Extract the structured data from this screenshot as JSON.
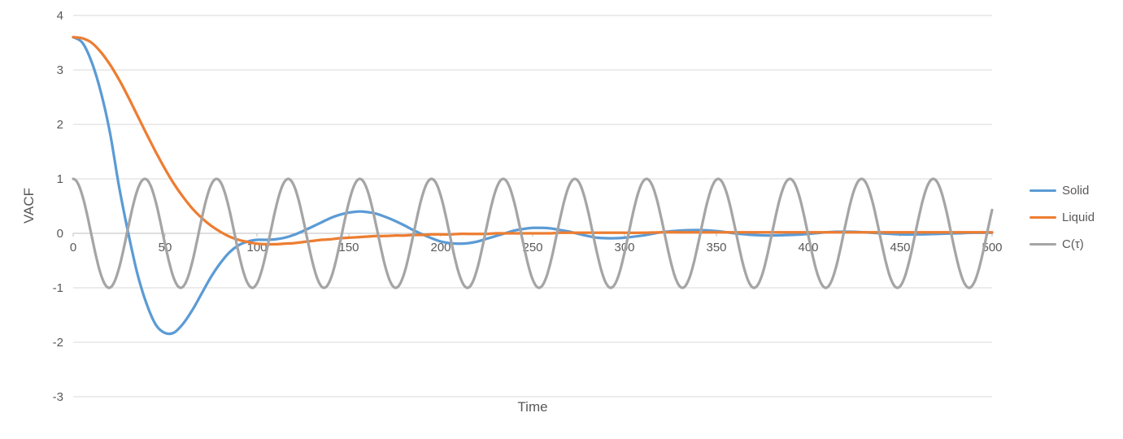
{
  "chart_data": {
    "type": "line",
    "title": "",
    "xlabel": "Time",
    "ylabel": "VACF",
    "xlim": [
      0,
      500
    ],
    "ylim": [
      -3,
      4
    ],
    "x_ticks": [
      0,
      50,
      100,
      150,
      200,
      250,
      300,
      350,
      400,
      450,
      500
    ],
    "y_ticks": [
      4,
      3,
      2,
      1,
      0,
      -1,
      -2,
      -3
    ],
    "grid": true,
    "legend_position": "right",
    "colors": {
      "grid": "#d9d9d9",
      "axis": "#bfbfbf",
      "tick_text": "#595959"
    },
    "x": [
      0,
      5,
      10,
      15,
      20,
      25,
      30,
      35,
      40,
      45,
      50,
      55,
      60,
      65,
      70,
      75,
      80,
      85,
      90,
      95,
      100,
      105,
      110,
      115,
      120,
      125,
      130,
      135,
      140,
      145,
      150,
      155,
      160,
      165,
      170,
      175,
      180,
      185,
      190,
      195,
      200,
      205,
      210,
      215,
      220,
      225,
      230,
      235,
      240,
      245,
      250,
      255,
      260,
      265,
      270,
      275,
      280,
      285,
      290,
      295,
      300,
      310,
      320,
      330,
      340,
      350,
      360,
      370,
      380,
      390,
      400,
      410,
      420,
      430,
      440,
      450,
      460,
      470,
      480,
      490,
      500
    ],
    "series": [
      {
        "name": "Solid",
        "color": "#5b9bd5",
        "y": [
          3.6,
          3.5,
          3.15,
          2.6,
          1.85,
          0.85,
          0.0,
          -0.75,
          -1.3,
          -1.68,
          -1.83,
          -1.82,
          -1.65,
          -1.4,
          -1.1,
          -0.8,
          -0.55,
          -0.35,
          -0.22,
          -0.15,
          -0.12,
          -0.12,
          -0.11,
          -0.08,
          -0.03,
          0.04,
          0.12,
          0.2,
          0.28,
          0.34,
          0.38,
          0.4,
          0.39,
          0.36,
          0.3,
          0.23,
          0.15,
          0.06,
          -0.02,
          -0.09,
          -0.15,
          -0.18,
          -0.19,
          -0.18,
          -0.15,
          -0.1,
          -0.05,
          0.0,
          0.05,
          0.08,
          0.1,
          0.1,
          0.09,
          0.06,
          0.03,
          -0.01,
          -0.05,
          -0.08,
          -0.09,
          -0.09,
          -0.08,
          -0.04,
          0.02,
          0.05,
          0.06,
          0.04,
          0.0,
          -0.03,
          -0.04,
          -0.03,
          -0.01,
          0.02,
          0.03,
          0.02,
          0.0,
          -0.02,
          -0.02,
          -0.01,
          0.0,
          0.01,
          0.01
        ]
      },
      {
        "name": "Liquid",
        "color": "#ed7d31",
        "y": [
          3.6,
          3.58,
          3.5,
          3.33,
          3.1,
          2.82,
          2.5,
          2.16,
          1.82,
          1.49,
          1.18,
          0.9,
          0.66,
          0.45,
          0.28,
          0.14,
          0.03,
          -0.06,
          -0.12,
          -0.16,
          -0.19,
          -0.2,
          -0.2,
          -0.19,
          -0.18,
          -0.16,
          -0.14,
          -0.12,
          -0.11,
          -0.09,
          -0.08,
          -0.07,
          -0.06,
          -0.05,
          -0.05,
          -0.04,
          -0.04,
          -0.03,
          -0.03,
          -0.02,
          -0.02,
          -0.02,
          -0.01,
          -0.01,
          -0.01,
          -0.01,
          0.0,
          0.0,
          0.0,
          0.0,
          0.0,
          0.0,
          0.0,
          0.01,
          0.01,
          0.01,
          0.01,
          0.01,
          0.01,
          0.01,
          0.01,
          0.01,
          0.02,
          0.02,
          0.02,
          0.02,
          0.02,
          0.02,
          0.02,
          0.02,
          0.02,
          0.02,
          0.02,
          0.02,
          0.02,
          0.02,
          0.02,
          0.02,
          0.02,
          0.02,
          0.02
        ]
      },
      {
        "name": "C(τ)",
        "color": "#a5a5a5",
        "generator": {
          "type": "cosine",
          "amplitude": 1,
          "period": 39,
          "phase": 0,
          "x_range": [
            0,
            500
          ],
          "sample_step": 1
        }
      }
    ]
  }
}
